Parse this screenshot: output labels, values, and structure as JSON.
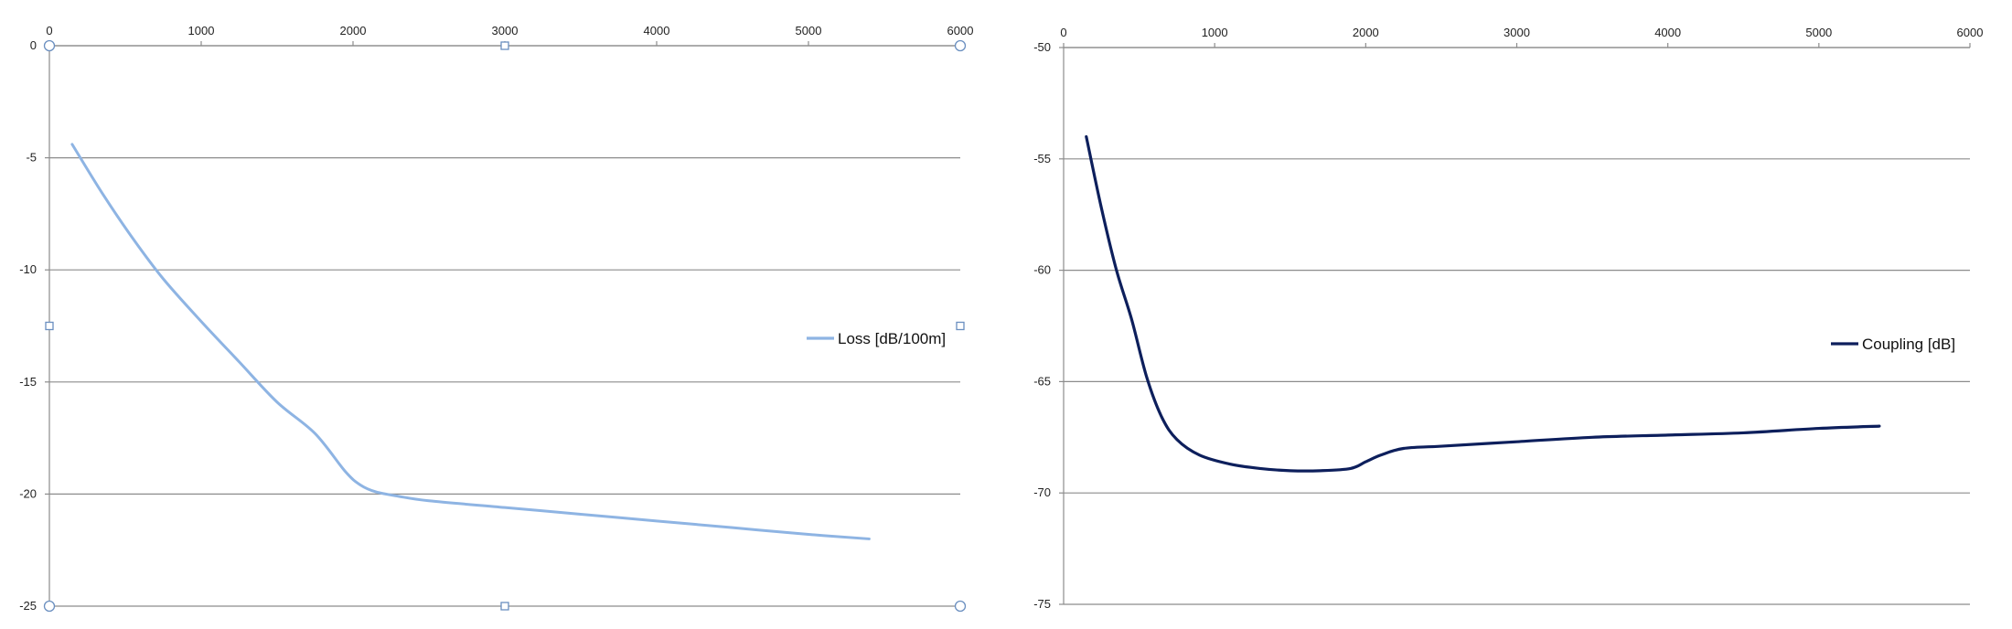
{
  "chart_data": [
    {
      "type": "line",
      "title": "",
      "xlabel": "",
      "ylabel": "",
      "xlim": [
        0,
        6000
      ],
      "ylim": [
        -25,
        0
      ],
      "xticks": [
        0,
        1000,
        2000,
        3000,
        4000,
        5000,
        6000
      ],
      "yticks": [
        0,
        -5,
        -10,
        -15,
        -20,
        -25
      ],
      "x_axis_position": "top",
      "grid": "horizontal",
      "legend_position": "right",
      "selected": true,
      "series": [
        {
          "name": "Loss [dB/100m]",
          "color": "#8eb4e3",
          "x": [
            150,
            350,
            550,
            750,
            1000,
            1250,
            1500,
            1750,
            1950,
            2050,
            2150,
            2300,
            2500,
            3000,
            3500,
            4000,
            4500,
            5000,
            5400
          ],
          "y": [
            -4.4,
            -6.6,
            -8.6,
            -10.4,
            -12.3,
            -14.1,
            -15.9,
            -17.3,
            -19.0,
            -19.6,
            -19.9,
            -20.1,
            -20.3,
            -20.6,
            -20.9,
            -21.2,
            -21.5,
            -21.8,
            -22.0
          ]
        }
      ]
    },
    {
      "type": "line",
      "title": "",
      "xlabel": "",
      "ylabel": "",
      "xlim": [
        0,
        6000
      ],
      "ylim": [
        -75,
        -50
      ],
      "xticks": [
        0,
        1000,
        2000,
        3000,
        4000,
        5000,
        6000
      ],
      "yticks": [
        -50,
        -55,
        -60,
        -65,
        -70,
        -75
      ],
      "x_axis_position": "top",
      "grid": "horizontal",
      "legend_position": "right",
      "selected": false,
      "series": [
        {
          "name": "Coupling [dB]",
          "color": "#0d1f5c",
          "x": [
            150,
            250,
            350,
            450,
            550,
            650,
            750,
            900,
            1100,
            1300,
            1500,
            1700,
            1900,
            2000,
            2100,
            2250,
            2500,
            3000,
            3500,
            4000,
            4500,
            5000,
            5400
          ],
          "y": [
            -54.0,
            -57.2,
            -60.0,
            -62.2,
            -64.8,
            -66.6,
            -67.6,
            -68.3,
            -68.7,
            -68.9,
            -69.0,
            -69.0,
            -68.9,
            -68.6,
            -68.3,
            -68.0,
            -67.9,
            -67.7,
            -67.5,
            -67.4,
            -67.3,
            -67.1,
            -67.0
          ]
        }
      ]
    }
  ]
}
